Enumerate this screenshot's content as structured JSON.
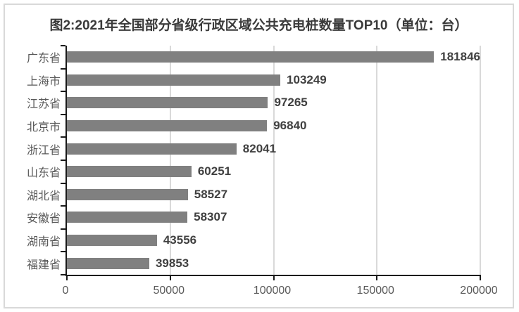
{
  "chart_data": {
    "type": "bar",
    "orientation": "horizontal",
    "title": "图2:2021年全国部分省级行政区域公共充电桩数量TOP10（单位：台）",
    "categories": [
      "广东省",
      "上海市",
      "江苏省",
      "北京市",
      "浙江省",
      "山东省",
      "湖北省",
      "安徽省",
      "湖南省",
      "福建省"
    ],
    "values": [
      181846,
      103249,
      97265,
      96840,
      82041,
      60251,
      58527,
      58307,
      43556,
      39853
    ],
    "value_labels": [
      "181846",
      "103249",
      "97265",
      "96840",
      "82041",
      "60251",
      "58527",
      "58307",
      "43556",
      "39853"
    ],
    "xlim": [
      0,
      200000
    ],
    "x_ticks": [
      0,
      50000,
      100000,
      150000,
      200000
    ],
    "x_tick_labels": [
      "0",
      "50000",
      "100000",
      "150000",
      "200000"
    ],
    "grid": true,
    "legend": "none",
    "colors": {
      "bar": "#808080",
      "gridline": "#d9d9d9",
      "axis": "#1a1a1a",
      "category_label": "#595959",
      "value_label": "#404040",
      "tick_label": "#595959",
      "title": "#3a3a3a",
      "frame_border": "#d9d9d9"
    }
  }
}
